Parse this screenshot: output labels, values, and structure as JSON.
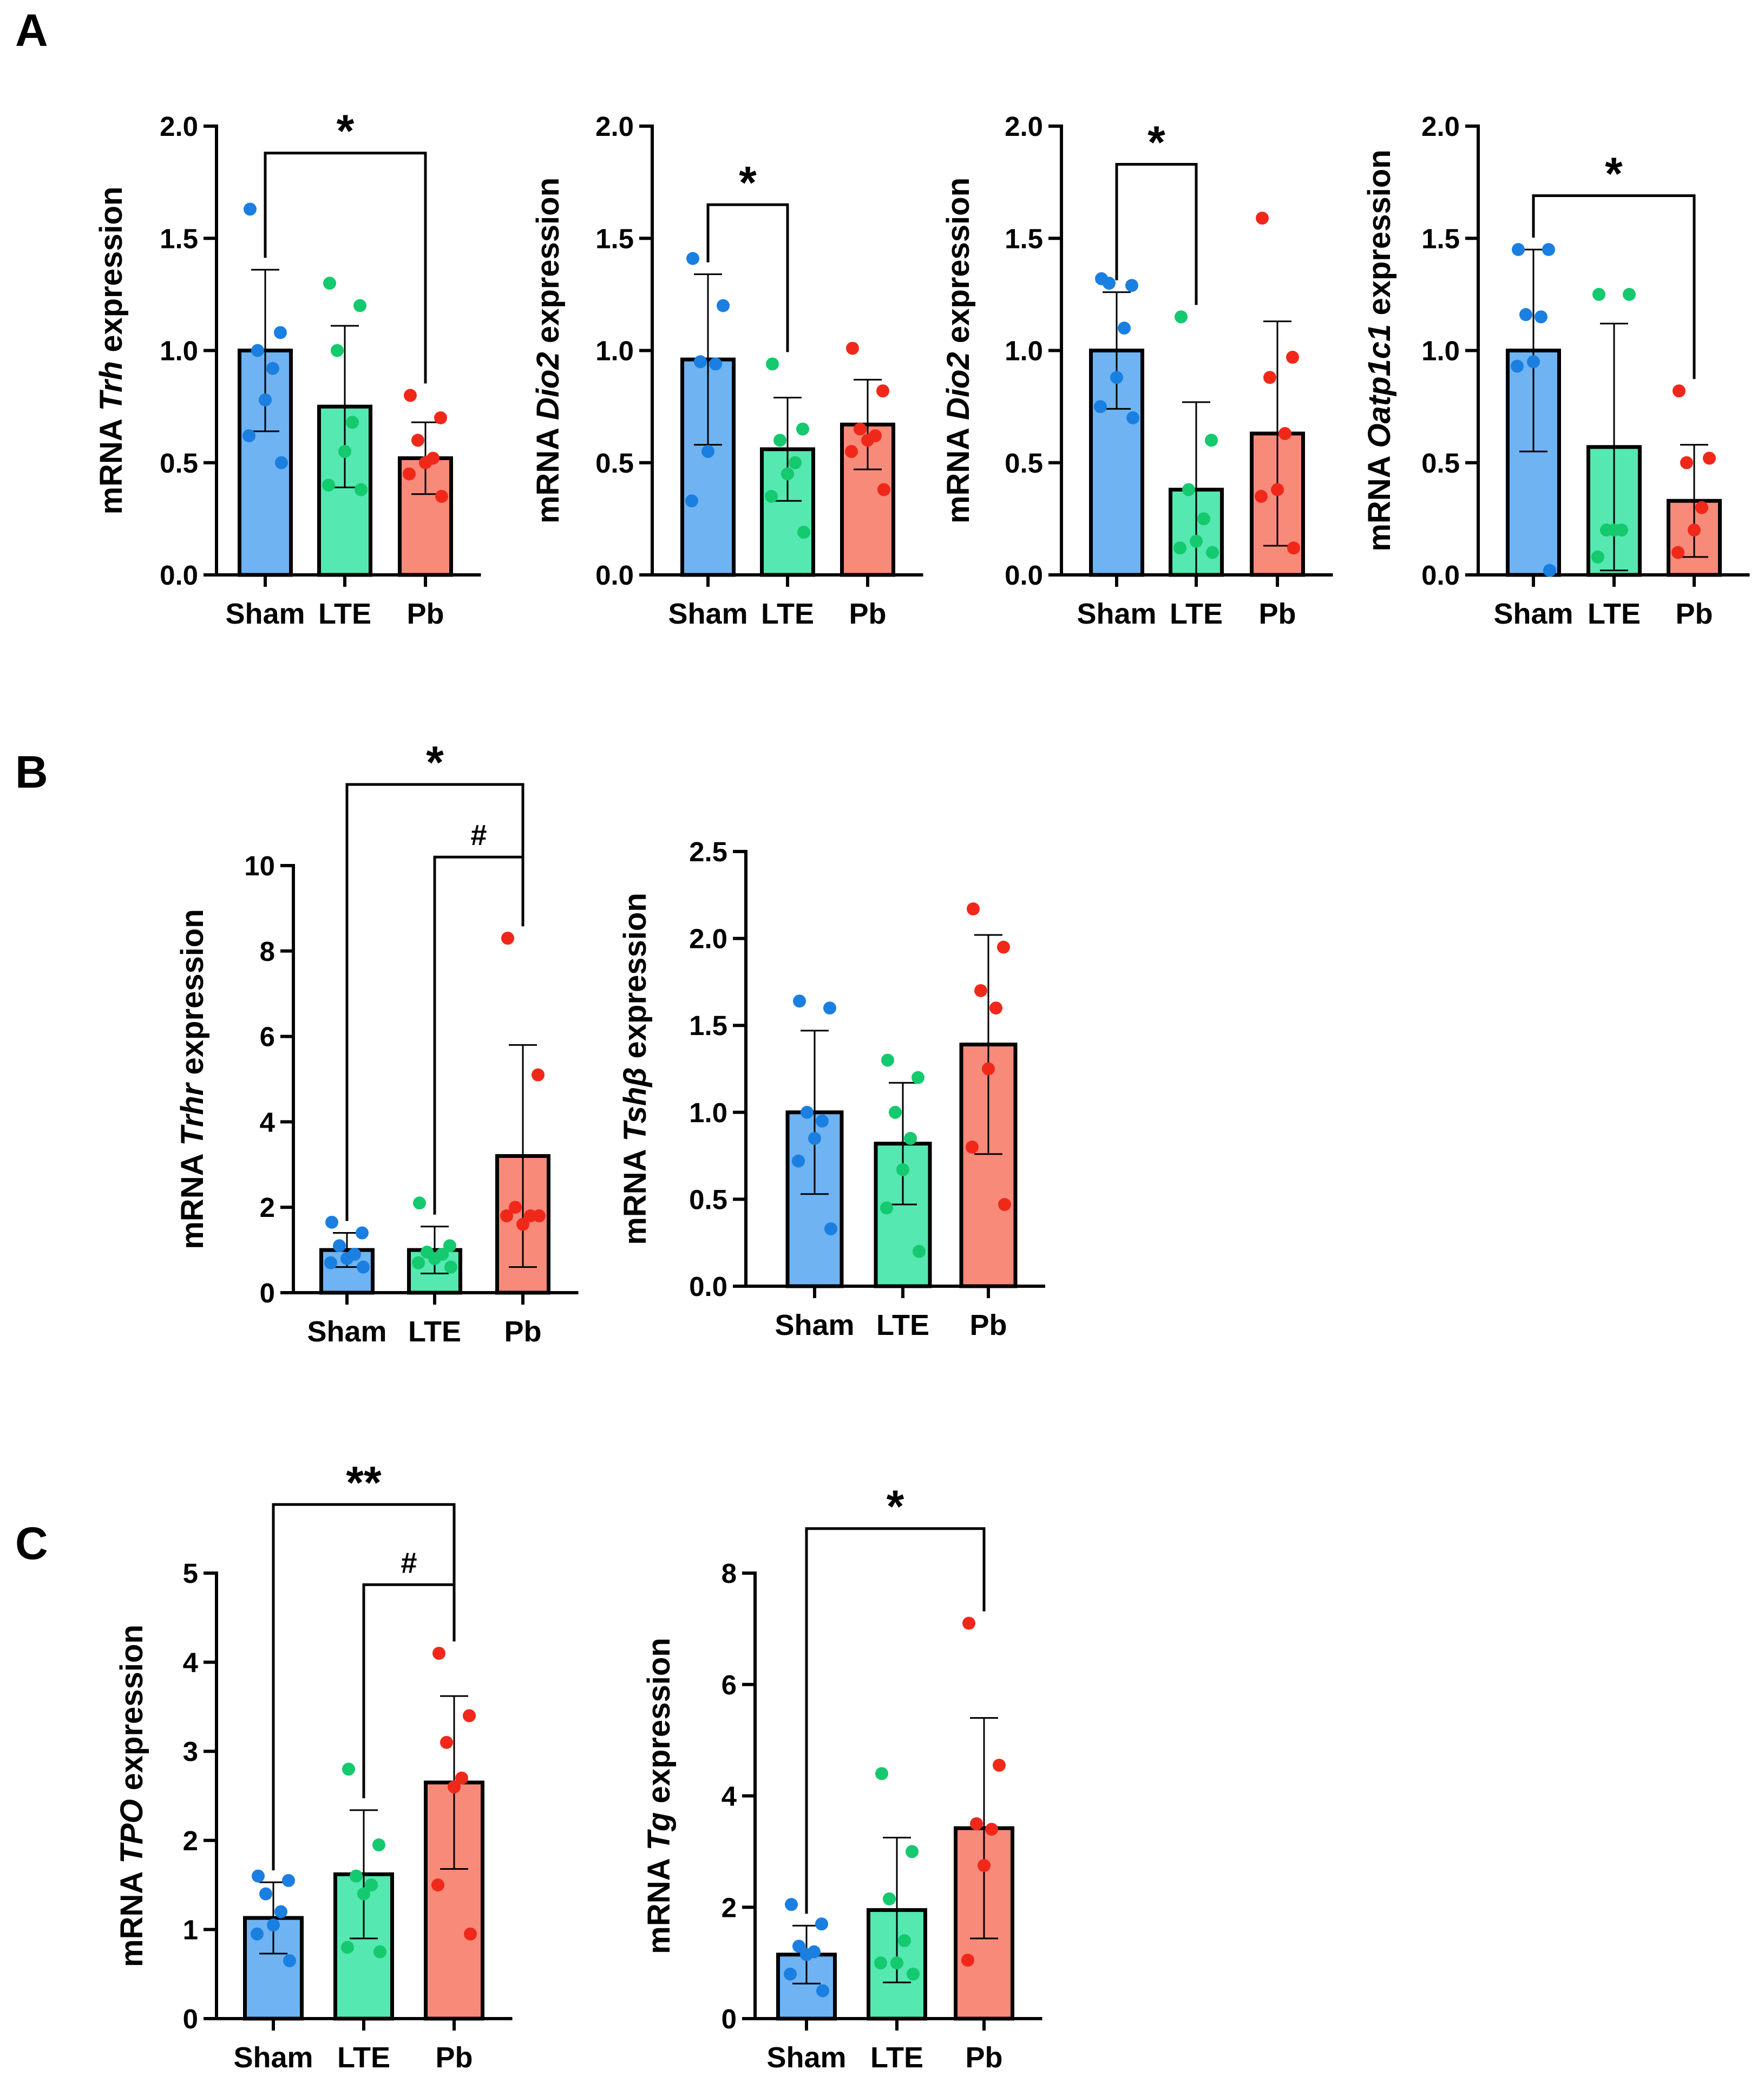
{
  "panel_labels": [
    "A",
    "B",
    "C"
  ],
  "colors": {
    "Sham": {
      "fill": "#6FB3F2",
      "dot": "#1A7FE0"
    },
    "LTE": {
      "fill": "#55E8B0",
      "dot": "#14C96E"
    },
    "Pb": {
      "fill": "#F88A7A",
      "dot": "#F0281A"
    }
  },
  "chart_data": [
    {
      "type": "bar",
      "panel": "A",
      "ylabel_prefix": "mRNA ",
      "ylabel_gene": "Trh",
      "ylabel_suffix": " expression",
      "categories": [
        "Sham",
        "LTE",
        "Pb"
      ],
      "ylim": [
        0,
        2.0
      ],
      "yticks": [
        0.0,
        0.5,
        1.0,
        1.5,
        2.0
      ],
      "tick_labels": [
        "0.0",
        "0.5",
        "1.0",
        "1.5",
        "2.0"
      ],
      "values": [
        1.0,
        0.75,
        0.52
      ],
      "error": [
        0.36,
        0.36,
        0.16
      ],
      "points": [
        [
          1.63,
          1.08,
          1.0,
          0.92,
          0.78,
          0.62,
          0.5
        ],
        [
          1.3,
          1.2,
          1.0,
          0.68,
          0.55,
          0.4,
          0.38
        ],
        [
          0.8,
          0.7,
          0.6,
          0.52,
          0.5,
          0.45,
          0.35
        ]
      ],
      "significance": [
        {
          "from": 0,
          "to": 2,
          "label": "*",
          "y": 1.88
        }
      ]
    },
    {
      "type": "bar",
      "panel": "A",
      "ylabel_prefix": "mRNA ",
      "ylabel_gene": "Dio2",
      "ylabel_suffix": " expression",
      "categories": [
        "Sham",
        "LTE",
        "Pb"
      ],
      "ylim": [
        0,
        2.0
      ],
      "yticks": [
        0.0,
        0.5,
        1.0,
        1.5,
        2.0
      ],
      "tick_labels": [
        "0.0",
        "0.5",
        "1.0",
        "1.5",
        "2.0"
      ],
      "values": [
        0.96,
        0.56,
        0.67
      ],
      "error": [
        0.38,
        0.23,
        0.2
      ],
      "points": [
        [
          1.41,
          1.2,
          0.95,
          0.94,
          0.55,
          0.33
        ],
        [
          0.94,
          0.65,
          0.6,
          0.5,
          0.45,
          0.35,
          0.19
        ],
        [
          1.01,
          0.82,
          0.65,
          0.62,
          0.6,
          0.55,
          0.38
        ]
      ],
      "significance": [
        {
          "from": 0,
          "to": 1,
          "label": "*",
          "y": 1.65
        }
      ]
    },
    {
      "type": "bar",
      "panel": "A",
      "ylabel_prefix": "mRNA ",
      "ylabel_gene": "Dio2",
      "ylabel_suffix": " expression",
      "categories": [
        "Sham",
        "LTE",
        "Pb"
      ],
      "ylim": [
        0,
        2.0
      ],
      "yticks": [
        0.0,
        0.5,
        1.0,
        1.5,
        2.0
      ],
      "tick_labels": [
        "0.0",
        "0.5",
        "1.0",
        "1.5",
        "2.0"
      ],
      "values": [
        1.0,
        0.38,
        0.63
      ],
      "error": [
        0.26,
        0.39,
        0.5
      ],
      "points": [
        [
          1.32,
          1.29,
          1.3,
          1.1,
          0.88,
          0.75,
          0.7
        ],
        [
          1.15,
          0.6,
          0.38,
          0.25,
          0.15,
          0.12,
          0.1
        ],
        [
          1.59,
          0.97,
          0.88,
          0.63,
          0.38,
          0.35,
          0.12
        ]
      ],
      "significance": [
        {
          "from": 0,
          "to": 1,
          "label": "*",
          "y": 1.83
        }
      ]
    },
    {
      "type": "bar",
      "panel": "A",
      "ylabel_prefix": "mRNA ",
      "ylabel_gene": "Oatp1c1",
      "ylabel_suffix": " expression",
      "categories": [
        "Sham",
        "LTE",
        "Pb"
      ],
      "ylim": [
        0,
        2.0
      ],
      "yticks": [
        0.0,
        0.5,
        1.0,
        1.5,
        2.0
      ],
      "tick_labels": [
        "0.0",
        "0.5",
        "1.0",
        "1.5",
        "2.0"
      ],
      "values": [
        1.0,
        0.57,
        0.33
      ],
      "error": [
        0.45,
        0.55,
        0.25
      ],
      "points": [
        [
          1.45,
          1.45,
          1.16,
          1.15,
          0.95,
          0.93,
          0.02
        ],
        [
          1.25,
          1.25,
          0.2,
          0.2,
          0.2,
          0.08
        ],
        [
          0.82,
          0.52,
          0.5,
          0.3,
          0.2,
          0.1
        ]
      ],
      "significance": [
        {
          "from": 0,
          "to": 2,
          "label": "*",
          "y": 1.69
        }
      ]
    },
    {
      "type": "bar",
      "panel": "B",
      "ylabel_prefix": "mRNA ",
      "ylabel_gene": "Trhr",
      "ylabel_suffix": " expression",
      "categories": [
        "Sham",
        "LTE",
        "Pb"
      ],
      "ylim": [
        0,
        10
      ],
      "yticks": [
        0,
        2,
        4,
        6,
        8,
        10
      ],
      "tick_labels": [
        "0",
        "2",
        "4",
        "6",
        "8",
        "10"
      ],
      "values": [
        1.0,
        1.0,
        3.2
      ],
      "error": [
        0.4,
        0.55,
        2.6
      ],
      "points": [
        [
          1.65,
          1.4,
          1.1,
          0.9,
          0.8,
          0.7,
          0.6
        ],
        [
          2.1,
          1.1,
          0.95,
          0.9,
          0.8,
          0.7,
          0.6
        ],
        [
          8.3,
          5.1,
          2.0,
          1.8,
          1.6,
          1.8,
          1.8
        ]
      ],
      "significance": [
        {
          "from": 0,
          "to": 2,
          "label": "*",
          "y": 11.9
        },
        {
          "from": 1,
          "to": 2,
          "label": "#",
          "y": 10.2
        }
      ]
    },
    {
      "type": "bar",
      "panel": "B",
      "ylabel_prefix": "mRNA ",
      "ylabel_gene": "Tshβ",
      "ylabel_suffix": " expression",
      "categories": [
        "Sham",
        "LTE",
        "Pb"
      ],
      "ylim": [
        0,
        2.5
      ],
      "yticks": [
        0.0,
        0.5,
        1.0,
        1.5,
        2.0,
        2.5
      ],
      "tick_labels": [
        "0.0",
        "0.5",
        "1.0",
        "1.5",
        "2.0",
        "2.5"
      ],
      "values": [
        1.0,
        0.82,
        1.39
      ],
      "error": [
        0.47,
        0.35,
        0.63
      ],
      "points": [
        [
          1.64,
          1.6,
          1.0,
          0.95,
          0.85,
          0.72,
          0.33
        ],
        [
          1.3,
          1.2,
          1.0,
          0.85,
          0.67,
          0.45,
          0.2
        ],
        [
          2.17,
          1.95,
          1.7,
          1.6,
          1.25,
          0.8,
          0.47
        ]
      ],
      "significance": []
    },
    {
      "type": "bar",
      "panel": "C",
      "ylabel_prefix": "mRNA ",
      "ylabel_gene": "TPO",
      "ylabel_suffix": " expression",
      "categories": [
        "Sham",
        "LTE",
        "Pb"
      ],
      "ylim": [
        0,
        5
      ],
      "yticks": [
        0,
        1,
        2,
        3,
        4,
        5
      ],
      "tick_labels": [
        "0",
        "1",
        "2",
        "3",
        "4",
        "5"
      ],
      "values": [
        1.13,
        1.62,
        2.65
      ],
      "error": [
        0.4,
        0.72,
        0.97
      ],
      "points": [
        [
          1.6,
          1.55,
          1.4,
          1.2,
          1.05,
          0.95,
          0.65
        ],
        [
          2.8,
          1.95,
          1.6,
          1.5,
          1.4,
          0.8,
          0.75
        ],
        [
          4.1,
          3.4,
          3.1,
          2.7,
          2.6,
          1.5,
          0.95
        ]
      ],
      "significance": [
        {
          "from": 0,
          "to": 2,
          "label": "**",
          "y": 5.77
        },
        {
          "from": 1,
          "to": 2,
          "label": "#",
          "y": 4.87
        }
      ]
    },
    {
      "type": "bar",
      "panel": "C",
      "ylabel_prefix": "mRNA ",
      "ylabel_gene": "Tg",
      "ylabel_suffix": " expression",
      "categories": [
        "Sham",
        "LTE",
        "Pb"
      ],
      "ylim": [
        0,
        8
      ],
      "yticks": [
        0,
        2,
        4,
        6,
        8
      ],
      "tick_labels": [
        "0",
        "2",
        "4",
        "6",
        "8"
      ],
      "values": [
        1.15,
        1.95,
        3.42
      ],
      "error": [
        0.52,
        1.3,
        1.98
      ],
      "points": [
        [
          2.05,
          1.7,
          1.3,
          1.2,
          1.15,
          0.8,
          0.5
        ],
        [
          4.4,
          3.0,
          2.15,
          1.4,
          1.0,
          1.0,
          0.8
        ],
        [
          7.1,
          4.55,
          3.5,
          3.4,
          2.75,
          1.05
        ]
      ],
      "significance": [
        {
          "from": 0,
          "to": 2,
          "label": "*",
          "y": 8.8
        }
      ]
    }
  ]
}
